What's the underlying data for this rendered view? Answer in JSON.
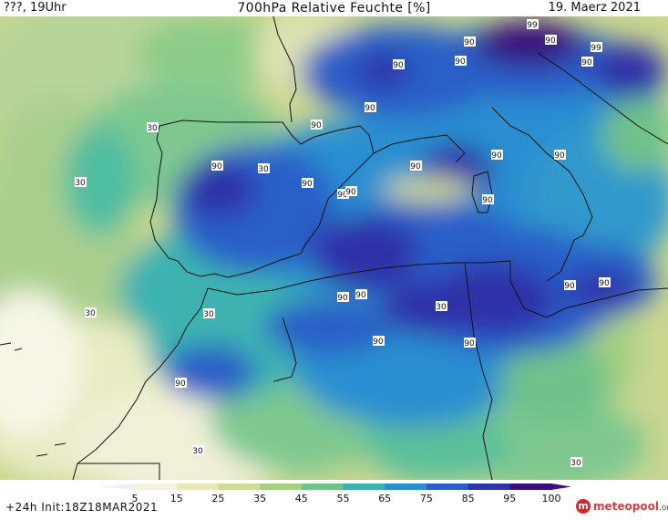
{
  "header": {
    "left": "???, 19Uhr",
    "title": "700hPa Relative Feuchte [%]",
    "date": "19. Maerz 2021"
  },
  "footer": {
    "init": "+24h  Init:18Z18MAR2021"
  },
  "logo": {
    "badge": "m",
    "name": "meteopool",
    "suffix": ".org"
  },
  "colorbar": {
    "ticks": [
      "5",
      "15",
      "25",
      "35",
      "45",
      "55",
      "65",
      "75",
      "85",
      "95",
      "100"
    ],
    "colors": [
      "#ffffff",
      "#f5f3dd",
      "#e8e8b8",
      "#cfdc98",
      "#a6cf83",
      "#6fc28a",
      "#3cb2b1",
      "#2a8fd0",
      "#2a5ec8",
      "#2d33a8",
      "#37107e"
    ]
  },
  "contour_labels": [
    {
      "text": "90"
    },
    {
      "text": "99"
    },
    {
      "text": "90"
    },
    {
      "text": "90"
    },
    {
      "text": "99"
    },
    {
      "text": "90"
    },
    {
      "text": "90"
    },
    {
      "text": "90"
    },
    {
      "text": "90"
    },
    {
      "text": "30"
    },
    {
      "text": "90"
    },
    {
      "text": "30"
    },
    {
      "text": "30"
    },
    {
      "text": "90"
    },
    {
      "text": "90"
    },
    {
      "text": "90"
    },
    {
      "text": "90"
    },
    {
      "text": "90"
    },
    {
      "text": "90"
    },
    {
      "text": "90"
    },
    {
      "text": "90"
    },
    {
      "text": "90"
    },
    {
      "text": "90"
    },
    {
      "text": "90"
    },
    {
      "text": "30"
    },
    {
      "text": "90"
    },
    {
      "text": "90"
    },
    {
      "text": "90"
    },
    {
      "text": "30"
    },
    {
      "text": "30"
    },
    {
      "text": "30"
    },
    {
      "text": "30"
    }
  ]
}
